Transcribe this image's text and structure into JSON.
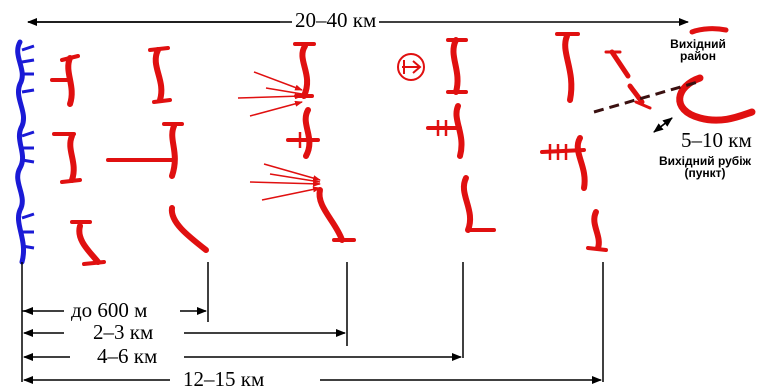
{
  "colors": {
    "friendly": "#1a1ad6",
    "enemy": "#e01010",
    "line": "#000000",
    "background": "#ffffff"
  },
  "labels": {
    "top_distance": "20–40 км",
    "exit_area": "Вихідний район",
    "exit_distance": "5–10 км",
    "exit_line": "Вихідний рубіж (пункт)"
  },
  "distances": [
    {
      "label": "до 600 м"
    },
    {
      "label": "2–3 км"
    },
    {
      "label": "4–6 км"
    },
    {
      "label": "12–15 км"
    }
  ]
}
